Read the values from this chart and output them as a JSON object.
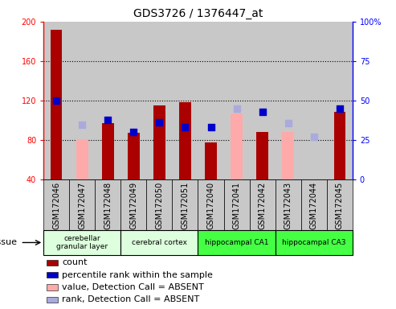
{
  "title": "GDS3726 / 1376447_at",
  "samples": [
    "GSM172046",
    "GSM172047",
    "GSM172048",
    "GSM172049",
    "GSM172050",
    "GSM172051",
    "GSM172040",
    "GSM172041",
    "GSM172042",
    "GSM172043",
    "GSM172044",
    "GSM172045"
  ],
  "red_bars": [
    192,
    null,
    97,
    87,
    115,
    118,
    77,
    null,
    88,
    null,
    40,
    108
  ],
  "pink_bars": [
    null,
    80,
    null,
    null,
    null,
    null,
    null,
    107,
    null,
    88,
    null,
    null
  ],
  "blue_squares": [
    120,
    null,
    100,
    88,
    98,
    93,
    93,
    null,
    108,
    null,
    null,
    112
  ],
  "light_blue_squares": [
    null,
    95,
    null,
    null,
    null,
    null,
    null,
    112,
    null,
    97,
    83,
    null
  ],
  "ylim_left": [
    40,
    200
  ],
  "ylim_right": [
    0,
    100
  ],
  "yticks_left": [
    40,
    80,
    120,
    160,
    200
  ],
  "yticks_right": [
    0,
    25,
    50,
    75,
    100
  ],
  "ytick_right_labels": [
    "0",
    "25",
    "50",
    "75",
    "100%"
  ],
  "tissue_groups": [
    {
      "label": "cerebellar\ngranular layer",
      "start": 0,
      "end": 3,
      "color": "#ddffdd"
    },
    {
      "label": "cerebral cortex",
      "start": 3,
      "end": 6,
      "color": "#ddffdd"
    },
    {
      "label": "hippocampal CA1",
      "start": 6,
      "end": 9,
      "color": "#44ff44"
    },
    {
      "label": "hippocampal CA3",
      "start": 9,
      "end": 12,
      "color": "#44ff44"
    }
  ],
  "bar_width": 0.45,
  "dot_size": 40,
  "red_color": "#aa0000",
  "pink_color": "#ffaaaa",
  "blue_color": "#0000cc",
  "light_blue_color": "#aaaadd",
  "col_bg_color": "#c8c8c8",
  "plot_bg": "#ffffff",
  "grid_color": "black",
  "title_fontsize": 10,
  "tick_fontsize": 7,
  "label_fontsize": 8,
  "legend_fontsize": 8,
  "legend_items": [
    {
      "color": "#aa0000",
      "label": "count"
    },
    {
      "color": "#0000cc",
      "label": "percentile rank within the sample"
    },
    {
      "color": "#ffaaaa",
      "label": "value, Detection Call = ABSENT"
    },
    {
      "color": "#aaaadd",
      "label": "rank, Detection Call = ABSENT"
    }
  ]
}
